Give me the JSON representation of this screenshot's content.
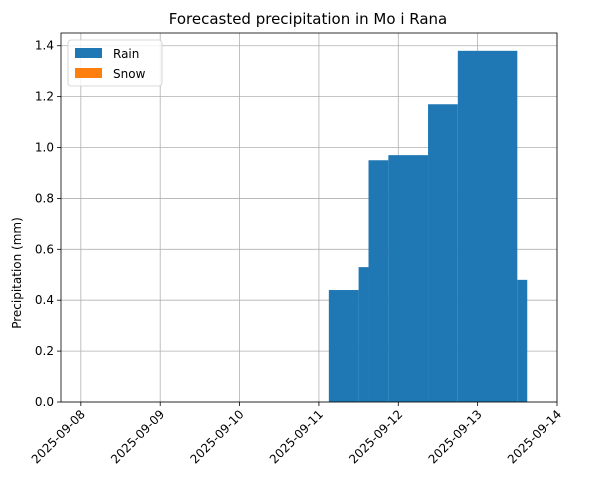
{
  "chart_data": {
    "type": "bar",
    "title": "Forecasted precipitation in Mo i Rana",
    "xlabel": "",
    "ylabel": "Precipitation (mm)",
    "xlim": [
      "2025-09-07T18:00",
      "2025-09-14T00:00"
    ],
    "ylim": [
      0,
      1.45
    ],
    "x_ticks": [
      "2025-09-08",
      "2025-09-09",
      "2025-09-10",
      "2025-09-11",
      "2025-09-12",
      "2025-09-13",
      "2025-09-14"
    ],
    "y_ticks": [
      "0.0",
      "0.2",
      "0.4",
      "0.6",
      "0.8",
      "1.0",
      "1.2",
      "1.4"
    ],
    "grid": true,
    "legend_position": "top-left",
    "series": [
      {
        "name": "Rain",
        "color": "#1f77b4",
        "bars": [
          {
            "start": "2025-09-11T03:00",
            "end": "2025-09-11T12:00",
            "value": 0.44
          },
          {
            "start": "2025-09-11T12:00",
            "end": "2025-09-11T15:00",
            "value": 0.53
          },
          {
            "start": "2025-09-11T15:00",
            "end": "2025-09-11T21:00",
            "value": 0.95
          },
          {
            "start": "2025-09-11T21:00",
            "end": "2025-09-12T09:00",
            "value": 0.97
          },
          {
            "start": "2025-09-12T09:00",
            "end": "2025-09-12T18:00",
            "value": 1.17
          },
          {
            "start": "2025-09-12T18:00",
            "end": "2025-09-13T12:00",
            "value": 1.38
          },
          {
            "start": "2025-09-13T12:00",
            "end": "2025-09-13T15:00",
            "value": 0.48
          }
        ]
      },
      {
        "name": "Snow",
        "color": "#ff7f0e",
        "bars": []
      }
    ]
  }
}
